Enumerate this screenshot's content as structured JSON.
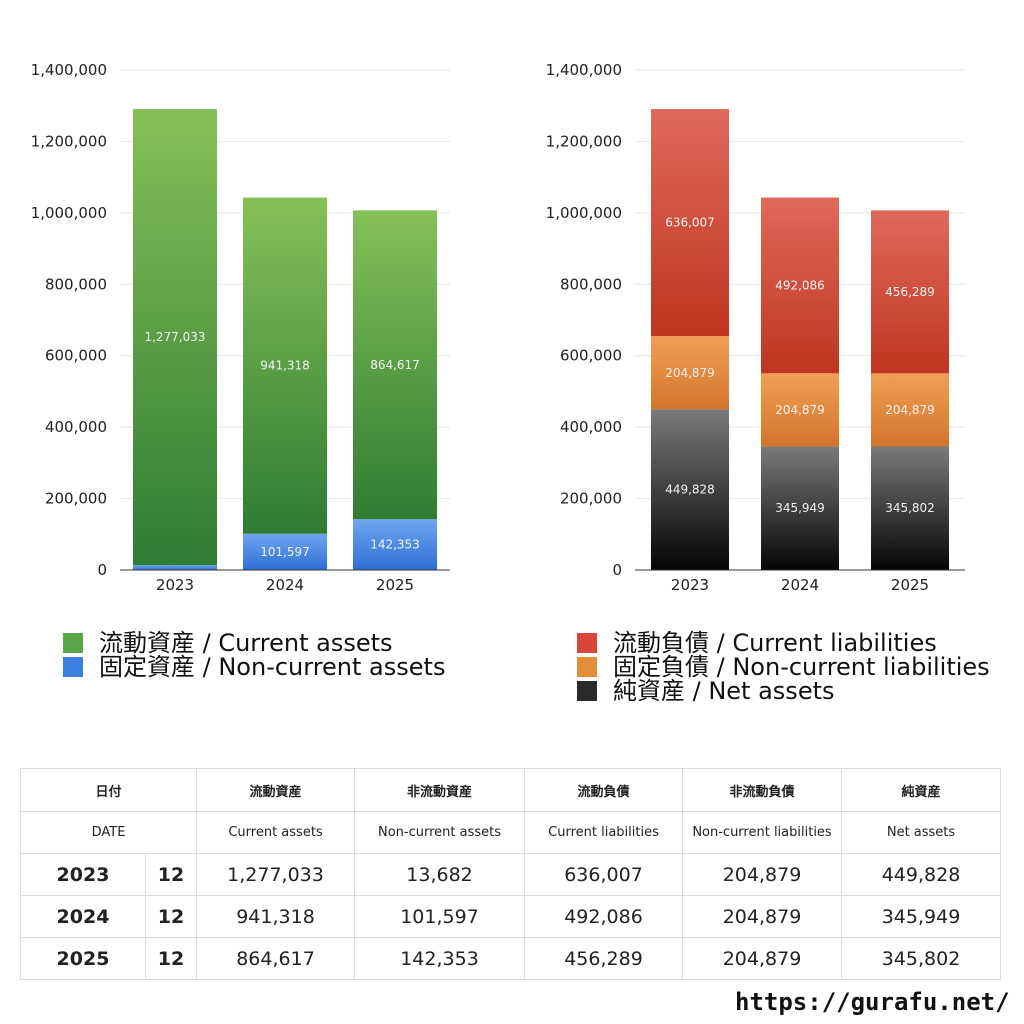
{
  "chart_data": [
    {
      "type": "bar",
      "stacked": true,
      "categories": [
        "2023",
        "2024",
        "2025"
      ],
      "ylim": [
        0,
        1400000
      ],
      "yticks": [
        "0",
        "200,000",
        "400,000",
        "600,000",
        "800,000",
        "1,000,000",
        "1,200,000",
        "1,400,000"
      ],
      "grid": true,
      "legend_position": "bottom",
      "series": [
        {
          "name": "固定資産 / Non-current assets",
          "values": [
            13682,
            101597,
            142353
          ],
          "labels": [
            "13,682",
            "101,597",
            "142,353"
          ],
          "color": "#3f7fe0"
        },
        {
          "name": "流動資産 / Current assets",
          "values": [
            1277033,
            941318,
            864617
          ],
          "labels": [
            "1,277,033",
            "941,318",
            "864,617"
          ],
          "color": "#4f9e3c"
        }
      ]
    },
    {
      "type": "bar",
      "stacked": true,
      "categories": [
        "2023",
        "2024",
        "2025"
      ],
      "ylim": [
        0,
        1400000
      ],
      "yticks": [
        "0",
        "200,000",
        "400,000",
        "600,000",
        "800,000",
        "1,000,000",
        "1,200,000",
        "1,400,000"
      ],
      "grid": true,
      "legend_position": "bottom",
      "series": [
        {
          "name": "純資産 / Net assets",
          "values": [
            449828,
            345949,
            345802
          ],
          "labels": [
            "449,828",
            "345,949",
            "345,802"
          ],
          "color": "#333333"
        },
        {
          "name": "固定負債 / Non-current liabilities",
          "values": [
            204879,
            204879,
            204879
          ],
          "labels": [
            "204,879",
            "204,879",
            "204,879"
          ],
          "color": "#e08a3a"
        },
        {
          "name": "流動負債 / Current liabilities",
          "values": [
            636007,
            492086,
            456289
          ],
          "labels": [
            "636,007",
            "492,086",
            "456,289"
          ],
          "color": "#d2483a"
        }
      ]
    }
  ],
  "legends": {
    "assets": [
      {
        "label": "流動資産 / Current assets",
        "color": "#5aa545"
      },
      {
        "label": "固定資産 / Non-current assets",
        "color": "#3b7fdf"
      }
    ],
    "liabilities": [
      {
        "label": "流動負債 / Current liabilities",
        "color": "#d9473a"
      },
      {
        "label": "固定負債 / Non-current liabilities",
        "color": "#e48c38"
      },
      {
        "label": "純資産 / Net assets",
        "color": "#2a2a2a"
      }
    ]
  },
  "table": {
    "header_ja": {
      "date": "日付",
      "c1": "流動資産",
      "c2": "非流動資産",
      "c3": "流動負債",
      "c4": "非流動負債",
      "c5": "純資産"
    },
    "header_en": {
      "date": "DATE",
      "c1": "Current assets",
      "c2": "Non-current assets",
      "c3": "Current liabilities",
      "c4": "Non-current liabilities",
      "c5": "Net assets"
    },
    "rows": [
      {
        "year": "2023",
        "month": "12",
        "c1": "1,277,033",
        "c2": "13,682",
        "c3": "636,007",
        "c4": "204,879",
        "c5": "449,828"
      },
      {
        "year": "2024",
        "month": "12",
        "c1": "941,318",
        "c2": "101,597",
        "c3": "492,086",
        "c4": "204,879",
        "c5": "345,949"
      },
      {
        "year": "2025",
        "month": "12",
        "c1": "864,617",
        "c2": "142,353",
        "c3": "456,289",
        "c4": "204,879",
        "c5": "345,802"
      }
    ]
  },
  "site_url": "https://gurafu.net/"
}
